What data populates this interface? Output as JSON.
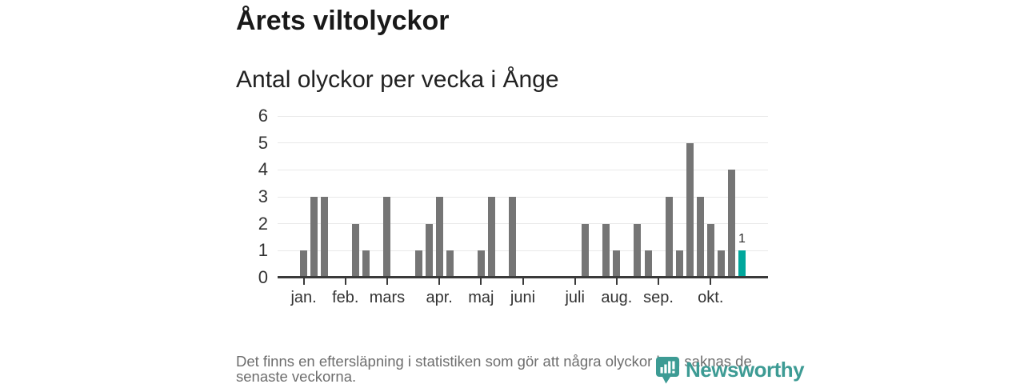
{
  "header": {
    "title": "Årets viltolyckor",
    "subtitle": "Antal olyckor per vecka i Ånge"
  },
  "chart_data": {
    "type": "bar",
    "title": "Årets viltolyckor",
    "subtitle": "Antal olyckor per vecka i Ånge",
    "ylabel": "",
    "xlabel": "",
    "ylim": [
      0,
      6
    ],
    "yticks": [
      0,
      1,
      2,
      3,
      4,
      5,
      6
    ],
    "grid": "horizontal",
    "total_weeks": 47,
    "bars": [
      {
        "week": 3,
        "value": 1
      },
      {
        "week": 4,
        "value": 3
      },
      {
        "week": 5,
        "value": 3
      },
      {
        "week": 8,
        "value": 2
      },
      {
        "week": 9,
        "value": 1
      },
      {
        "week": 11,
        "value": 3
      },
      {
        "week": 14,
        "value": 1
      },
      {
        "week": 15,
        "value": 2
      },
      {
        "week": 16,
        "value": 3
      },
      {
        "week": 17,
        "value": 1
      },
      {
        "week": 20,
        "value": 1
      },
      {
        "week": 21,
        "value": 3
      },
      {
        "week": 23,
        "value": 3
      },
      {
        "week": 30,
        "value": 2
      },
      {
        "week": 32,
        "value": 2
      },
      {
        "week": 33,
        "value": 1
      },
      {
        "week": 35,
        "value": 2
      },
      {
        "week": 36,
        "value": 1
      },
      {
        "week": 38,
        "value": 3
      },
      {
        "week": 39,
        "value": 1
      },
      {
        "week": 40,
        "value": 5
      },
      {
        "week": 41,
        "value": 3
      },
      {
        "week": 42,
        "value": 2
      },
      {
        "week": 43,
        "value": 1
      },
      {
        "week": 44,
        "value": 4
      },
      {
        "week": 45,
        "value": 1,
        "highlight": true,
        "label": "1"
      }
    ],
    "months": [
      {
        "label": "jan.",
        "week": 3
      },
      {
        "label": "feb.",
        "week": 7
      },
      {
        "label": "mars",
        "week": 11
      },
      {
        "label": "apr.",
        "week": 16
      },
      {
        "label": "maj",
        "week": 20
      },
      {
        "label": "juni",
        "week": 24
      },
      {
        "label": "juli",
        "week": 29
      },
      {
        "label": "aug.",
        "week": 33
      },
      {
        "label": "sep.",
        "week": 37
      },
      {
        "label": "okt.",
        "week": 42
      }
    ],
    "bar_color": "#757575",
    "highlight_color": "#00a79c"
  },
  "footer": {
    "note": "Det finns en eftersläpning i statistiken som gör att några olyckor kan saknas de senaste veckorna."
  },
  "logo": {
    "text": "Newsworthy",
    "color": "#3d9b94",
    "icon": "newsworthy-bubble-barchart-icon"
  }
}
